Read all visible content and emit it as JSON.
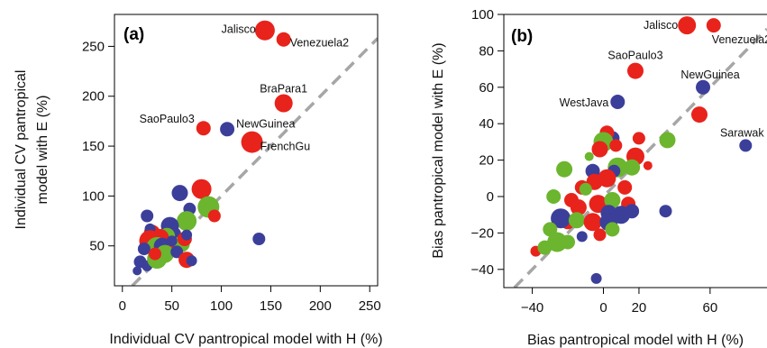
{
  "colors": {
    "red": "#e8231b",
    "blue": "#3b3f9a",
    "green": "#6cb52e",
    "identity": "#a6a6a6"
  },
  "chart_data": [
    {
      "type": "scatter",
      "panel_label": "(a)",
      "xlabel": "Individual CV pantropical model with H (%)",
      "ylabel": "Individual CV pantropical model with E (%)",
      "xlim": [
        -8,
        258
      ],
      "ylim": [
        10,
        282
      ],
      "xticks": [
        "0",
        "50",
        "100",
        "150",
        "200",
        "250"
      ],
      "xtick_values": [
        0,
        50,
        100,
        150,
        200,
        250
      ],
      "yticks": [
        "50",
        "100",
        "150",
        "200",
        "250"
      ],
      "ytick_values": [
        50,
        100,
        150,
        200,
        250
      ],
      "identity_line": true,
      "grid": false,
      "annotations": [
        {
          "text": "Jalisco",
          "x": 144,
          "y": 266,
          "anchor": "end",
          "dx": -10,
          "dy": -1
        },
        {
          "text": "Venezuela2",
          "x": 163,
          "y": 257,
          "anchor": "start",
          "dx": 7,
          "dy": 4
        },
        {
          "text": "BraPara1",
          "x": 163,
          "y": 193,
          "anchor": "middle",
          "dx": 0,
          "dy": -16
        },
        {
          "text": "SaoPaulo3",
          "x": 82,
          "y": 168,
          "anchor": "end",
          "dx": -10,
          "dy": -10
        },
        {
          "text": "NewGuinea",
          "x": 106,
          "y": 167,
          "anchor": "start",
          "dx": 10,
          "dy": -6
        },
        {
          "text": "FrenchGu",
          "x": 131,
          "y": 154,
          "anchor": "start",
          "dx": 9,
          "dy": 5
        }
      ],
      "points": [
        {
          "x": 144,
          "y": 266,
          "color": "red",
          "size": 11
        },
        {
          "x": 163,
          "y": 257,
          "color": "red",
          "size": 8
        },
        {
          "x": 163,
          "y": 193,
          "color": "red",
          "size": 10
        },
        {
          "x": 82,
          "y": 168,
          "color": "red",
          "size": 8
        },
        {
          "x": 106,
          "y": 167,
          "color": "blue",
          "size": 8
        },
        {
          "x": 131,
          "y": 154,
          "color": "red",
          "size": 12
        },
        {
          "x": 138,
          "y": 57,
          "color": "blue",
          "size": 7
        },
        {
          "x": 80,
          "y": 107,
          "color": "red",
          "size": 11
        },
        {
          "x": 58,
          "y": 103,
          "color": "blue",
          "size": 9
        },
        {
          "x": 87,
          "y": 89,
          "color": "green",
          "size": 12
        },
        {
          "x": 93,
          "y": 80,
          "color": "red",
          "size": 7
        },
        {
          "x": 68,
          "y": 87,
          "color": "blue",
          "size": 7
        },
        {
          "x": 65,
          "y": 75,
          "color": "green",
          "size": 11
        },
        {
          "x": 48,
          "y": 70,
          "color": "blue",
          "size": 10
        },
        {
          "x": 52,
          "y": 62,
          "color": "blue",
          "size": 8
        },
        {
          "x": 45,
          "y": 60,
          "color": "green",
          "size": 9
        },
        {
          "x": 38,
          "y": 58,
          "color": "red",
          "size": 10
        },
        {
          "x": 30,
          "y": 63,
          "color": "red",
          "size": 9
        },
        {
          "x": 25,
          "y": 80,
          "color": "blue",
          "size": 7
        },
        {
          "x": 28,
          "y": 67,
          "color": "blue",
          "size": 6
        },
        {
          "x": 28,
          "y": 55,
          "color": "red",
          "size": 12
        },
        {
          "x": 35,
          "y": 48,
          "color": "green",
          "size": 12
        },
        {
          "x": 40,
          "y": 50,
          "color": "blue",
          "size": 9
        },
        {
          "x": 52,
          "y": 47,
          "color": "red",
          "size": 8
        },
        {
          "x": 60,
          "y": 52,
          "color": "green",
          "size": 9
        },
        {
          "x": 63,
          "y": 57,
          "color": "red",
          "size": 8
        },
        {
          "x": 65,
          "y": 61,
          "color": "blue",
          "size": 6
        },
        {
          "x": 22,
          "y": 47,
          "color": "blue",
          "size": 7
        },
        {
          "x": 18,
          "y": 34,
          "color": "blue",
          "size": 7
        },
        {
          "x": 25,
          "y": 30,
          "color": "blue",
          "size": 6
        },
        {
          "x": 15,
          "y": 25,
          "color": "blue",
          "size": 5
        },
        {
          "x": 35,
          "y": 37,
          "color": "green",
          "size": 11
        },
        {
          "x": 43,
          "y": 42,
          "color": "green",
          "size": 10
        },
        {
          "x": 55,
          "y": 44,
          "color": "blue",
          "size": 7
        },
        {
          "x": 65,
          "y": 36,
          "color": "red",
          "size": 9
        },
        {
          "x": 70,
          "y": 35,
          "color": "blue",
          "size": 6
        },
        {
          "x": 33,
          "y": 42,
          "color": "red",
          "size": 7
        },
        {
          "x": 50,
          "y": 55,
          "color": "blue",
          "size": 6
        }
      ]
    },
    {
      "type": "scatter",
      "panel_label": "(b)",
      "xlabel": "Bias pantropical model with H (%)",
      "ylabel": "Bias pantropical model with E (%)",
      "xlim": [
        -56,
        92
      ],
      "ylim": [
        -50,
        100
      ],
      "xticks": [
        "−40",
        "0",
        "20",
        "60"
      ],
      "xtick_values": [
        -40,
        0,
        20,
        60
      ],
      "yticks": [
        "−40",
        "−20",
        "0",
        "20",
        "40",
        "60",
        "80",
        "100"
      ],
      "ytick_values": [
        -40,
        -20,
        0,
        20,
        40,
        60,
        80,
        100
      ],
      "identity_line": true,
      "grid": false,
      "annotations": [
        {
          "text": "Jalisco",
          "x": 47,
          "y": 94,
          "anchor": "end",
          "dx": -10,
          "dy": 0
        },
        {
          "text": "Venezuela2",
          "x": 62,
          "y": 94,
          "anchor": "start",
          "dx": -2,
          "dy": 16
        },
        {
          "text": "SaoPaulo3",
          "x": 18,
          "y": 69,
          "anchor": "middle",
          "dx": 0,
          "dy": -17
        },
        {
          "text": "NewGuinea",
          "x": 56,
          "y": 60,
          "anchor": "middle",
          "dx": 8,
          "dy": -14
        },
        {
          "text": "WestJava",
          "x": 8,
          "y": 52,
          "anchor": "end",
          "dx": -10,
          "dy": 1
        },
        {
          "text": "Sarawak",
          "x": 80,
          "y": 28,
          "anchor": "middle",
          "dx": -4,
          "dy": -14
        }
      ],
      "points": [
        {
          "x": 47,
          "y": 94,
          "color": "red",
          "size": 10
        },
        {
          "x": 62,
          "y": 94,
          "color": "red",
          "size": 8
        },
        {
          "x": 18,
          "y": 69,
          "color": "red",
          "size": 9
        },
        {
          "x": 56,
          "y": 60,
          "color": "blue",
          "size": 8
        },
        {
          "x": 8,
          "y": 52,
          "color": "blue",
          "size": 8
        },
        {
          "x": 80,
          "y": 28,
          "color": "blue",
          "size": 7
        },
        {
          "x": 54,
          "y": 45,
          "color": "red",
          "size": 9
        },
        {
          "x": 36,
          "y": 31,
          "color": "green",
          "size": 9
        },
        {
          "x": 5,
          "y": 32,
          "color": "blue",
          "size": 8
        },
        {
          "x": 2,
          "y": 35,
          "color": "red",
          "size": 8
        },
        {
          "x": 0,
          "y": 30,
          "color": "green",
          "size": 11
        },
        {
          "x": 7,
          "y": 28,
          "color": "red",
          "size": 7
        },
        {
          "x": 20,
          "y": 32,
          "color": "red",
          "size": 7
        },
        {
          "x": -2,
          "y": 26,
          "color": "red",
          "size": 9
        },
        {
          "x": 18,
          "y": 22,
          "color": "red",
          "size": 10
        },
        {
          "x": 16,
          "y": 16,
          "color": "green",
          "size": 9
        },
        {
          "x": 25,
          "y": 17,
          "color": "red",
          "size": 5
        },
        {
          "x": 8,
          "y": 16,
          "color": "green",
          "size": 11
        },
        {
          "x": 6,
          "y": 14,
          "color": "blue",
          "size": 7
        },
        {
          "x": -8,
          "y": 22,
          "color": "green",
          "size": 5
        },
        {
          "x": -6,
          "y": 14,
          "color": "blue",
          "size": 8
        },
        {
          "x": -22,
          "y": 15,
          "color": "green",
          "size": 9
        },
        {
          "x": -12,
          "y": 5,
          "color": "red",
          "size": 8
        },
        {
          "x": -5,
          "y": 8,
          "color": "red",
          "size": 9
        },
        {
          "x": 2,
          "y": 10,
          "color": "red",
          "size": 10
        },
        {
          "x": 12,
          "y": 5,
          "color": "red",
          "size": 8
        },
        {
          "x": -28,
          "y": 0,
          "color": "green",
          "size": 8
        },
        {
          "x": -18,
          "y": -2,
          "color": "red",
          "size": 8
        },
        {
          "x": -14,
          "y": -6,
          "color": "red",
          "size": 9
        },
        {
          "x": -10,
          "y": 4,
          "color": "green",
          "size": 7
        },
        {
          "x": -3,
          "y": -4,
          "color": "red",
          "size": 10
        },
        {
          "x": 5,
          "y": -2,
          "color": "green",
          "size": 9
        },
        {
          "x": 14,
          "y": -4,
          "color": "red",
          "size": 8
        },
        {
          "x": -20,
          "y": -14,
          "color": "red",
          "size": 8
        },
        {
          "x": -24,
          "y": -12,
          "color": "blue",
          "size": 11
        },
        {
          "x": -15,
          "y": -13,
          "color": "green",
          "size": 9
        },
        {
          "x": -6,
          "y": -14,
          "color": "red",
          "size": 10
        },
        {
          "x": 3,
          "y": -9,
          "color": "blue",
          "size": 9
        },
        {
          "x": 10,
          "y": -10,
          "color": "blue",
          "size": 10
        },
        {
          "x": 16,
          "y": -8,
          "color": "blue",
          "size": 8
        },
        {
          "x": 3,
          "y": -14,
          "color": "blue",
          "size": 10
        },
        {
          "x": 5,
          "y": -18,
          "color": "green",
          "size": 8
        },
        {
          "x": 35,
          "y": -8,
          "color": "blue",
          "size": 7
        },
        {
          "x": -30,
          "y": -18,
          "color": "green",
          "size": 8
        },
        {
          "x": -26,
          "y": -25,
          "color": "green",
          "size": 11
        },
        {
          "x": -20,
          "y": -25,
          "color": "green",
          "size": 8
        },
        {
          "x": -12,
          "y": -22,
          "color": "blue",
          "size": 6
        },
        {
          "x": -2,
          "y": -21,
          "color": "red",
          "size": 7
        },
        {
          "x": -38,
          "y": -30,
          "color": "red",
          "size": 6
        },
        {
          "x": -33,
          "y": -28,
          "color": "green",
          "size": 8
        },
        {
          "x": -4,
          "y": -45,
          "color": "blue",
          "size": 6
        }
      ]
    }
  ]
}
